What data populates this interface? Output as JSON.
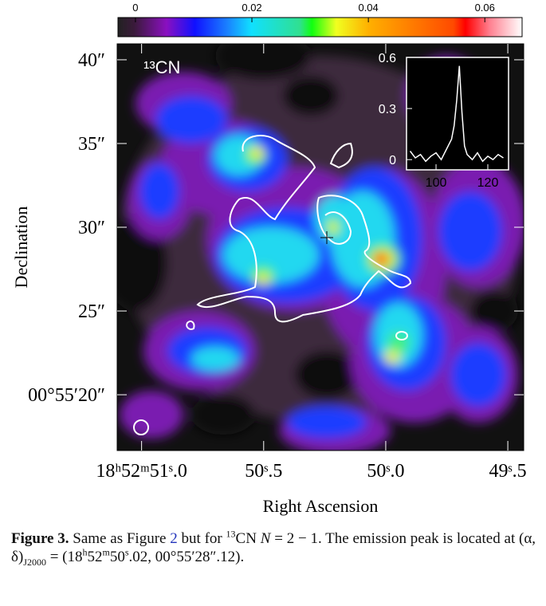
{
  "figure": {
    "colorbar": {
      "lim": [
        -0.003,
        0.0664
      ],
      "ticks": [
        0,
        0.02,
        0.04,
        0.06
      ]
    },
    "map": {
      "label": "¹³CN",
      "xlabel": "Right Ascension",
      "ylabel": "Declination",
      "xlim": [
        51.1,
        49.435
      ],
      "xticks": [
        {
          "value": 51.0,
          "label": "18ʰ52ᵐ51ˢ.0"
        },
        {
          "value": 50.5,
          "label": "50ˢ.5"
        },
        {
          "value": 50.0,
          "label": "50ˢ.0"
        },
        {
          "value": 49.5,
          "label": "49ˢ.5"
        }
      ],
      "ylim": [
        16.67,
        40.95
      ],
      "yticks": [
        {
          "value": 40,
          "label": "40″"
        },
        {
          "value": 35,
          "label": "35″"
        },
        {
          "value": 30,
          "label": "30″"
        },
        {
          "value": 25,
          "label": "25″"
        },
        {
          "value": 20,
          "label": "00°55′20″"
        }
      ]
    },
    "inset": {
      "xlim": [
        88.6,
        128
      ],
      "xticks": [
        100,
        120
      ],
      "ylim": [
        -0.06,
        0.6
      ],
      "yticks": [
        0,
        0.3,
        0.6
      ],
      "x": [
        90,
        92,
        94,
        96,
        98,
        100,
        102,
        104,
        106,
        107,
        108,
        109,
        110,
        111,
        112,
        114,
        116,
        118,
        120,
        122,
        124,
        126
      ],
      "values": [
        0.05,
        0.01,
        0.03,
        -0.01,
        0.02,
        0.04,
        0.0,
        0.06,
        0.12,
        0.2,
        0.35,
        0.55,
        0.28,
        0.08,
        0.03,
        0.0,
        0.04,
        -0.01,
        0.02,
        0.0,
        0.03,
        0.01
      ]
    },
    "caption": {
      "segments": [
        "Figure 3.",
        "Same as Figure",
        "2",
        "but for",
        "13",
        "CN",
        "N",
        "= 2 − 1. The emission peak is located at (α, δ)",
        "J2000",
        "= (18",
        "h",
        "52",
        "m",
        "50",
        "s",
        ".02, 00°55′28″.12)."
      ]
    }
  }
}
